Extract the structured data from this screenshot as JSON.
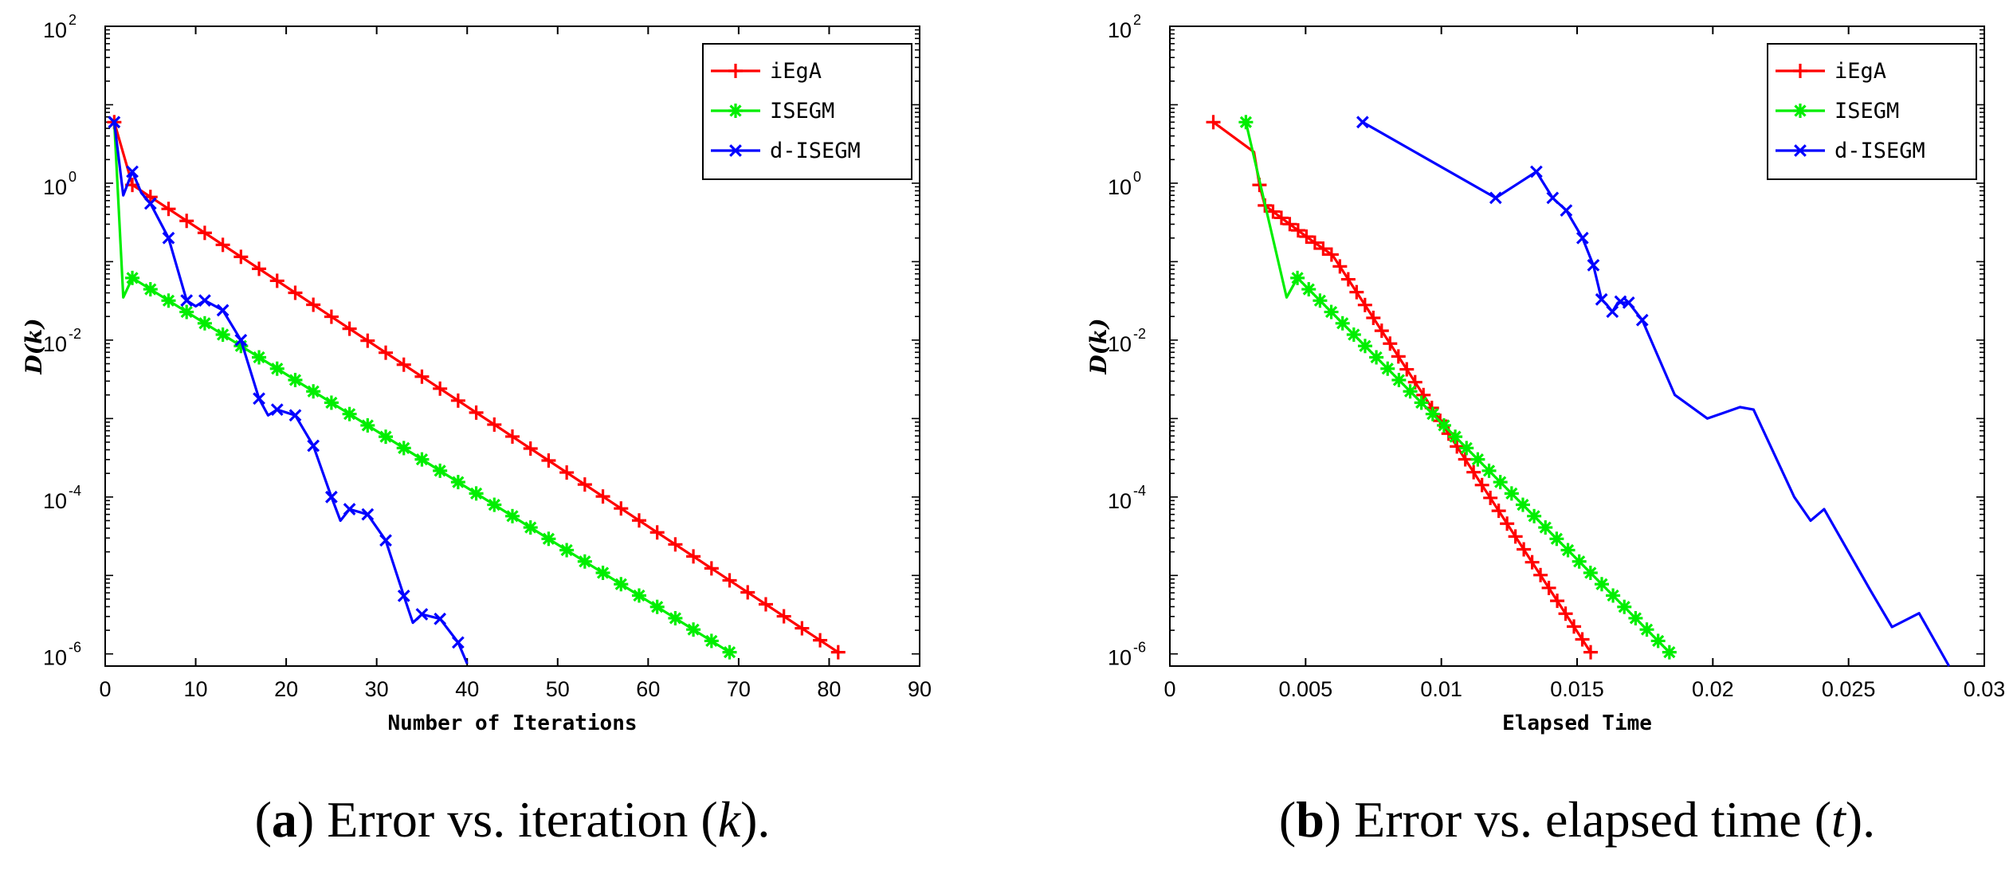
{
  "chart_data": [
    {
      "type": "line",
      "panel_id": "a",
      "xlabel": "Number of Iterations",
      "ylabel": "D(k)",
      "yscale": "log",
      "xlim": [
        0,
        90
      ],
      "ylim": [
        7e-07,
        100
      ],
      "xticks": [
        0,
        10,
        20,
        30,
        40,
        50,
        60,
        70,
        80,
        90
      ],
      "yticks": [
        {
          "base": "10",
          "exp": "2",
          "value": 100
        },
        {
          "base": "10",
          "exp": "0",
          "value": 1
        },
        {
          "base": "10",
          "exp": "-2",
          "value": 0.01
        },
        {
          "base": "10",
          "exp": "-4",
          "value": 0.0001
        },
        {
          "base": "10",
          "exp": "-6",
          "value": 1e-06
        }
      ],
      "legend_position": "top-right",
      "caption": {
        "label": "a",
        "text": ") Error vs. iteration (",
        "var": "k",
        "end": ")."
      },
      "series": [
        {
          "name": "iEgA",
          "color": "#ff0000",
          "marker": "plus",
          "anchors": [
            [
              1,
              6
            ],
            [
              3,
              0.95
            ],
            [
              81,
              1.05e-06
            ]
          ],
          "marker_range": [
            1,
            81,
            2
          ]
        },
        {
          "name": "ISEGM",
          "color": "#00ee00",
          "marker": "star",
          "anchors": [
            [
              1,
              6
            ],
            [
              2,
              0.035
            ],
            [
              3,
              0.062
            ],
            [
              69,
              1.05e-06
            ]
          ],
          "marker_range": [
            3,
            69,
            2
          ]
        },
        {
          "name": "d-ISEGM",
          "color": "#0000ff",
          "marker": "x",
          "anchors": [
            [
              1,
              6
            ],
            [
              2,
              0.7
            ],
            [
              3,
              1.4
            ],
            [
              4,
              0.75
            ],
            [
              5,
              0.55
            ],
            [
              7,
              0.2
            ],
            [
              9,
              0.032
            ],
            [
              10,
              0.027
            ],
            [
              11,
              0.032
            ],
            [
              13,
              0.024
            ],
            [
              15,
              0.01
            ],
            [
              17,
              0.0018
            ],
            [
              18,
              0.0011
            ],
            [
              19,
              0.0013
            ],
            [
              21,
              0.0011
            ],
            [
              23,
              0.00045
            ],
            [
              25,
              0.0001
            ],
            [
              26,
              5e-05
            ],
            [
              27,
              7e-05
            ],
            [
              29,
              6e-05
            ],
            [
              31,
              2.8e-05
            ],
            [
              33,
              5.5e-06
            ],
            [
              34,
              2.5e-06
            ],
            [
              35,
              3.2e-06
            ],
            [
              37,
              2.8e-06
            ],
            [
              39,
              1.4e-06
            ],
            [
              40,
              7.5e-07
            ]
          ],
          "marker_points": [
            [
              1,
              6
            ],
            [
              3,
              1.4
            ],
            [
              5,
              0.55
            ],
            [
              7,
              0.2
            ],
            [
              9,
              0.032
            ],
            [
              11,
              0.032
            ],
            [
              13,
              0.024
            ],
            [
              15,
              0.01
            ],
            [
              17,
              0.0018
            ],
            [
              19,
              0.0013
            ],
            [
              21,
              0.0011
            ],
            [
              23,
              0.00045
            ],
            [
              25,
              0.0001
            ],
            [
              27,
              7e-05
            ],
            [
              29,
              6e-05
            ],
            [
              31,
              2.8e-05
            ],
            [
              33,
              5.5e-06
            ],
            [
              35,
              3.2e-06
            ],
            [
              37,
              2.8e-06
            ],
            [
              39,
              1.4e-06
            ]
          ]
        }
      ]
    },
    {
      "type": "line",
      "panel_id": "b",
      "xlabel": "Elapsed Time",
      "ylabel": "D(k)",
      "yscale": "log",
      "xlim": [
        0,
        0.03
      ],
      "ylim": [
        7e-07,
        100
      ],
      "xticks": [
        0,
        0.005,
        0.01,
        0.015,
        0.02,
        0.025,
        0.03
      ],
      "xtick_labels": [
        "0",
        "0.005",
        "0.01",
        "0.015",
        "0.02",
        "0.025",
        "0.03"
      ],
      "yticks": [
        {
          "base": "10",
          "exp": "2",
          "value": 100
        },
        {
          "base": "10",
          "exp": "0",
          "value": 1
        },
        {
          "base": "10",
          "exp": "-2",
          "value": 0.01
        },
        {
          "base": "10",
          "exp": "-4",
          "value": 0.0001
        },
        {
          "base": "10",
          "exp": "-6",
          "value": 1e-06
        }
      ],
      "legend_position": "top-right",
      "caption": {
        "label": "b",
        "text": ") Error vs. elapsed time (",
        "var": "t",
        "end": ")."
      },
      "series": [
        {
          "name": "iEgA",
          "color": "#ff0000",
          "marker": "plus",
          "anchors": [
            [
              0.0016,
              6
            ],
            [
              0.0031,
              2.5
            ],
            [
              0.0033,
              0.95
            ],
            [
              0.0035,
              0.52
            ],
            [
              0.0051,
              0.2
            ],
            [
              0.006,
              0.12
            ],
            [
              0.0155,
              1.05e-06
            ]
          ],
          "marker_points": [
            [
              0.0016,
              6
            ],
            [
              0.0033,
              0.95
            ],
            [
              0.0035,
              0.52
            ]
          ],
          "marker_range": [
            0.0038,
            0.0155,
            39
          ]
        },
        {
          "name": "ISEGM",
          "color": "#00ee00",
          "marker": "star",
          "anchors": [
            [
              0.0028,
              6
            ],
            [
              0.0043,
              0.035
            ],
            [
              0.0047,
              0.062
            ],
            [
              0.0184,
              1.05e-06
            ]
          ],
          "marker_points": [
            [
              0.0028,
              6
            ]
          ],
          "marker_range": [
            0.0047,
            0.0184,
            34
          ]
        },
        {
          "name": "d-ISEGM",
          "color": "#0000ff",
          "marker": "x",
          "anchors": [
            [
              0.0071,
              6
            ],
            [
              0.012,
              0.65
            ],
            [
              0.0135,
              1.4
            ],
            [
              0.0141,
              0.65
            ],
            [
              0.0146,
              0.45
            ],
            [
              0.0152,
              0.2
            ],
            [
              0.0156,
              0.09
            ],
            [
              0.0159,
              0.033
            ],
            [
              0.0161,
              0.028
            ],
            [
              0.0163,
              0.023
            ],
            [
              0.0165,
              0.03
            ],
            [
              0.0169,
              0.03
            ],
            [
              0.0174,
              0.018
            ],
            [
              0.0186,
              0.002
            ],
            [
              0.0198,
              0.001
            ],
            [
              0.021,
              0.0014
            ],
            [
              0.0215,
              0.0013
            ],
            [
              0.023,
              0.0001
            ],
            [
              0.0236,
              5e-05
            ],
            [
              0.0241,
              7e-05
            ],
            [
              0.0258,
              6.5e-06
            ],
            [
              0.0266,
              2.2e-06
            ],
            [
              0.0276,
              3.3e-06
            ],
            [
              0.0287,
              7e-07
            ]
          ],
          "marker_points": [
            [
              0.0071,
              6
            ],
            [
              0.012,
              0.65
            ],
            [
              0.0135,
              1.4
            ],
            [
              0.0141,
              0.65
            ],
            [
              0.0146,
              0.45
            ],
            [
              0.0152,
              0.2
            ],
            [
              0.0156,
              0.09
            ],
            [
              0.0159,
              0.033
            ],
            [
              0.0163,
              0.023
            ],
            [
              0.0166,
              0.031
            ],
            [
              0.0169,
              0.03
            ],
            [
              0.0174,
              0.018
            ]
          ]
        }
      ]
    }
  ]
}
